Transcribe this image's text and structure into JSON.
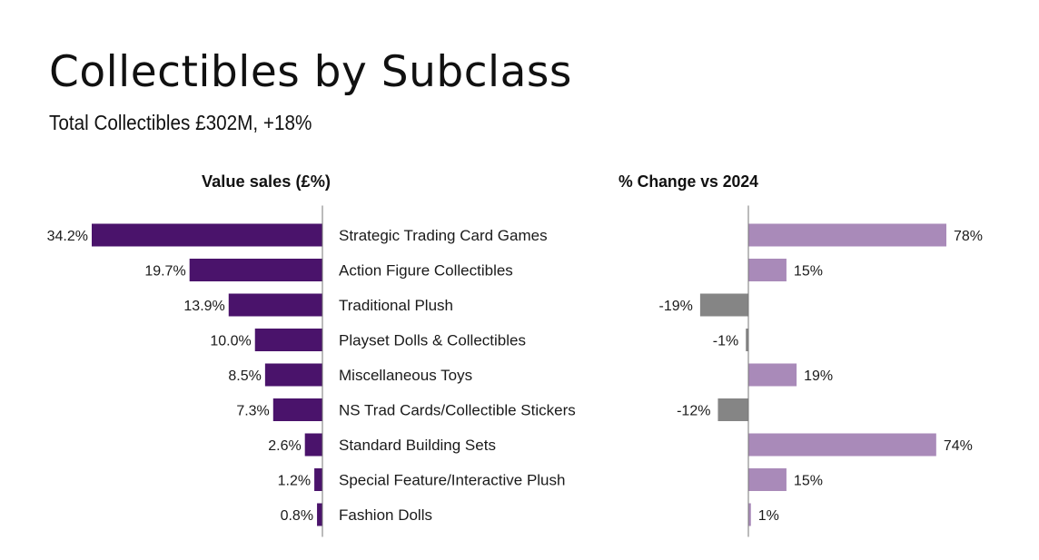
{
  "title": "Collectibles by Subclass",
  "subtitle": "Total Collectibles £302M, +18%",
  "colors": {
    "share_bar": "#4a136b",
    "change_positive": "#a98ab9",
    "change_negative": "#858585",
    "axis": "#777777"
  },
  "chart_data": [
    {
      "type": "bar",
      "orientation": "horizontal",
      "title": "Value sales (£%)",
      "categories": [
        "Strategic Trading Card Games",
        "Action Figure Collectibles",
        "Traditional Plush",
        "Playset Dolls & Collectibles",
        "Miscellaneous Toys",
        "NS Trad Cards/Collectible Stickers",
        "Standard Building Sets",
        "Special Feature/Interactive Plush",
        "Fashion Dolls"
      ],
      "values": [
        34.2,
        19.7,
        13.9,
        10.0,
        8.5,
        7.3,
        2.6,
        1.2,
        0.8
      ],
      "value_labels": [
        "34.2%",
        "19.7%",
        "13.9%",
        "10.0%",
        "8.5%",
        "7.3%",
        "2.6%",
        "1.2%",
        "0.8%"
      ],
      "unit": "%",
      "xlim": [
        0,
        34.2
      ]
    },
    {
      "type": "bar",
      "orientation": "horizontal",
      "title": "% Change vs 2024",
      "categories": [
        "Strategic Trading Card Games",
        "Action Figure Collectibles",
        "Traditional Plush",
        "Playset Dolls & Collectibles",
        "Miscellaneous Toys",
        "NS Trad Cards/Collectible Stickers",
        "Standard Building Sets",
        "Special Feature/Interactive Plush",
        "Fashion Dolls"
      ],
      "values": [
        78,
        15,
        -19,
        -1,
        19,
        -12,
        74,
        15,
        1
      ],
      "value_labels": [
        "78%",
        "15%",
        "-19%",
        "-1%",
        "19%",
        "-12%",
        "74%",
        "15%",
        "1%"
      ],
      "unit": "%",
      "xlim": [
        -20,
        80
      ]
    }
  ]
}
